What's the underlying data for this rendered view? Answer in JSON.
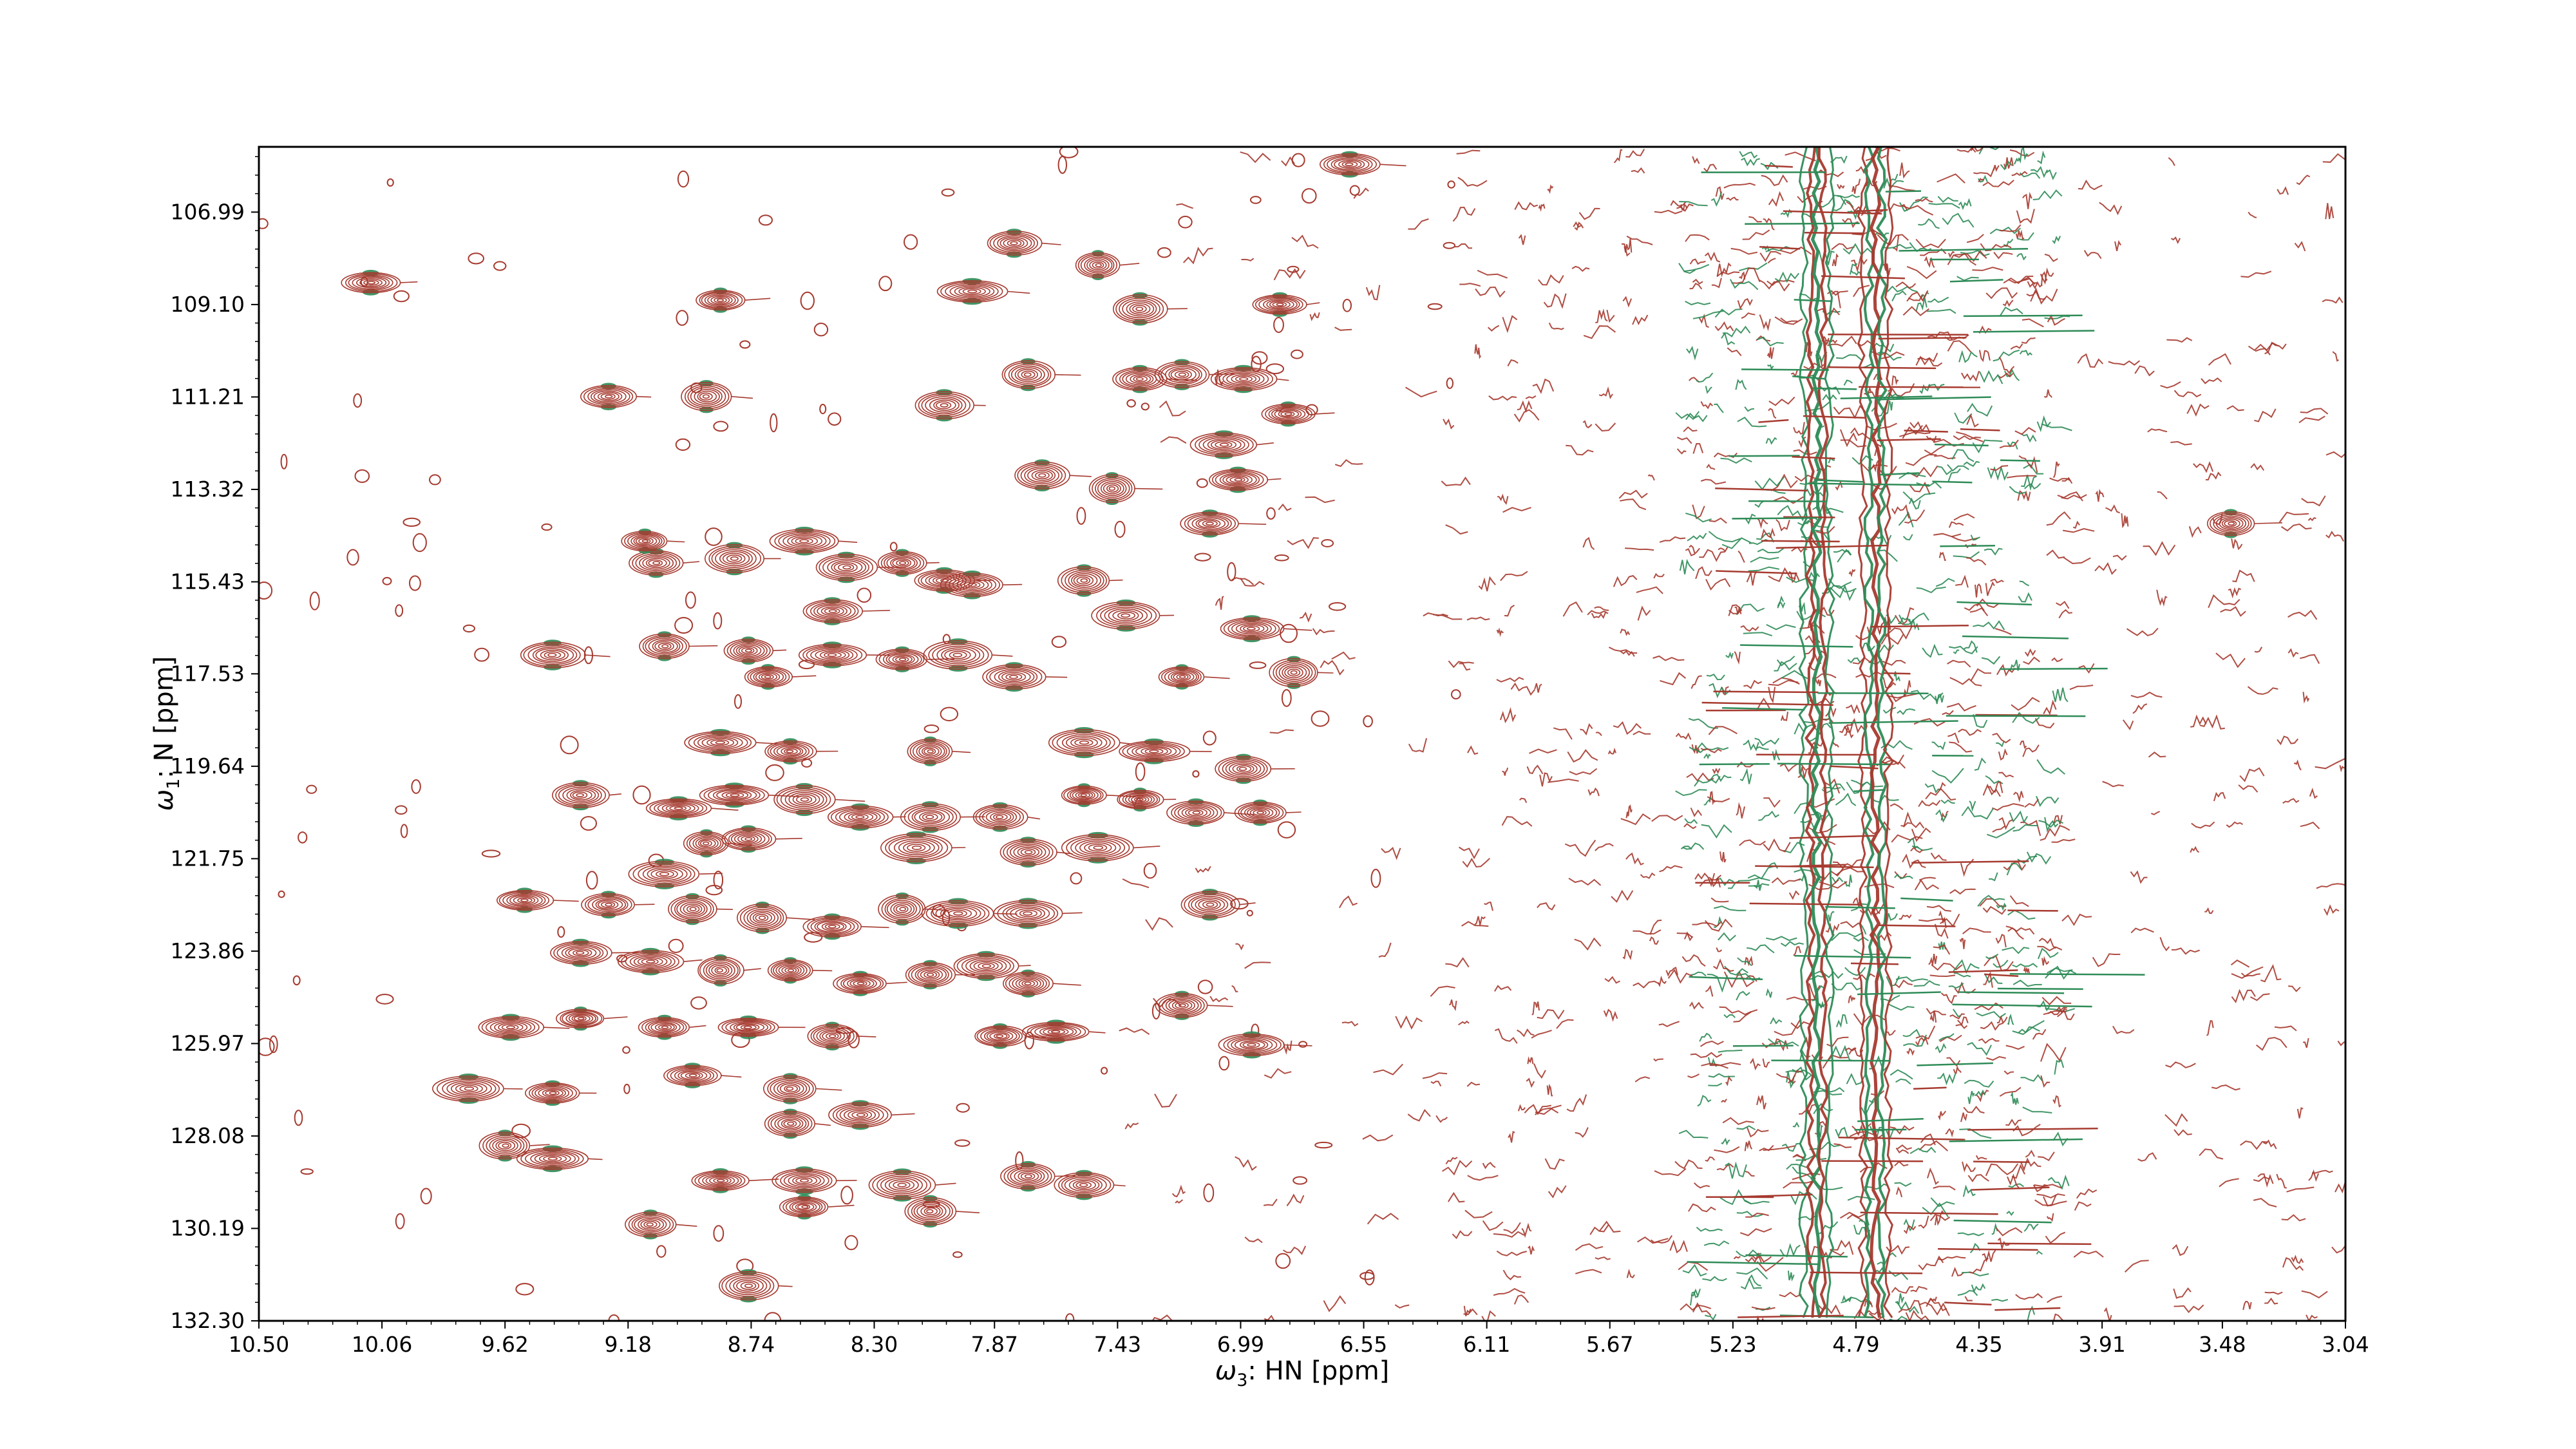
{
  "chart_data": {
    "type": "contour",
    "xlabel": {
      "prefix": "ω",
      "sub": "3",
      "suffix": ": HN [ppm]"
    },
    "ylabel": {
      "prefix": "ω",
      "sub": "1",
      "suffix": ": N [ppm]"
    },
    "xlim": [
      10.5,
      3.04
    ],
    "ylim": [
      105.5,
      132.3
    ],
    "x_ticks": [
      "10.50",
      "10.06",
      "9.62",
      "9.18",
      "8.74",
      "8.30",
      "7.87",
      "7.43",
      "6.99",
      "6.55",
      "6.11",
      "5.67",
      "5.23",
      "4.79",
      "4.35",
      "3.91",
      "3.48",
      "3.04"
    ],
    "y_ticks": [
      "106.99",
      "109.10",
      "111.21",
      "113.32",
      "115.43",
      "117.53",
      "119.64",
      "121.75",
      "123.86",
      "125.97",
      "128.08",
      "130.19",
      "132.30"
    ],
    "colors": {
      "positive": "#a63a2f",
      "negative": "#2e8b57"
    },
    "series": [
      {
        "kind": "peaks",
        "points": [
          [
            10.1,
            108.6
          ],
          [
            8.85,
            109.0
          ],
          [
            7.95,
            108.8
          ],
          [
            7.8,
            107.7
          ],
          [
            7.5,
            108.2
          ],
          [
            7.35,
            109.2
          ],
          [
            6.85,
            109.1
          ],
          [
            6.6,
            105.9
          ],
          [
            9.25,
            111.2
          ],
          [
            8.9,
            111.2
          ],
          [
            8.05,
            111.4
          ],
          [
            7.7,
            113.0
          ],
          [
            7.35,
            110.8
          ],
          [
            7.2,
            110.7
          ],
          [
            6.98,
            110.8
          ],
          [
            6.82,
            111.6
          ],
          [
            7.05,
            112.3
          ],
          [
            7.75,
            110.7
          ],
          [
            7.45,
            113.3
          ],
          [
            7.0,
            113.1
          ],
          [
            7.1,
            114.1
          ],
          [
            8.55,
            114.5
          ],
          [
            9.08,
            115.0
          ],
          [
            9.12,
            114.5
          ],
          [
            8.8,
            114.9
          ],
          [
            8.4,
            115.1
          ],
          [
            8.2,
            115.0
          ],
          [
            8.05,
            115.4
          ],
          [
            7.95,
            115.5
          ],
          [
            7.55,
            115.4
          ],
          [
            7.4,
            116.2
          ],
          [
            8.45,
            116.1
          ],
          [
            9.45,
            117.1
          ],
          [
            9.05,
            116.9
          ],
          [
            8.75,
            117.0
          ],
          [
            8.45,
            117.1
          ],
          [
            8.2,
            117.2
          ],
          [
            8.0,
            117.1
          ],
          [
            7.8,
            117.6
          ],
          [
            7.2,
            117.6
          ],
          [
            6.95,
            116.5
          ],
          [
            6.8,
            117.5
          ],
          [
            8.68,
            117.6
          ],
          [
            8.1,
            119.3
          ],
          [
            7.55,
            119.1
          ],
          [
            7.3,
            119.3
          ],
          [
            8.85,
            119.1
          ],
          [
            8.6,
            119.3
          ],
          [
            8.8,
            120.3
          ],
          [
            9.35,
            120.3
          ],
          [
            9.0,
            120.6
          ],
          [
            8.75,
            121.3
          ],
          [
            8.55,
            120.4
          ],
          [
            8.35,
            120.8
          ],
          [
            8.1,
            120.8
          ],
          [
            7.85,
            120.8
          ],
          [
            7.55,
            120.3
          ],
          [
            7.35,
            120.4
          ],
          [
            7.15,
            120.7
          ],
          [
            6.98,
            119.7
          ],
          [
            6.92,
            120.7
          ],
          [
            7.75,
            121.6
          ],
          [
            7.5,
            121.5
          ],
          [
            8.15,
            121.5
          ],
          [
            8.9,
            121.4
          ],
          [
            9.05,
            122.1
          ],
          [
            9.55,
            122.7
          ],
          [
            9.25,
            122.8
          ],
          [
            8.95,
            122.9
          ],
          [
            8.7,
            123.1
          ],
          [
            8.45,
            123.3
          ],
          [
            8.2,
            122.9
          ],
          [
            8.0,
            123.0
          ],
          [
            7.75,
            123.0
          ],
          [
            7.1,
            122.8
          ],
          [
            9.35,
            123.9
          ],
          [
            9.1,
            124.1
          ],
          [
            8.85,
            124.3
          ],
          [
            8.6,
            124.3
          ],
          [
            8.35,
            124.6
          ],
          [
            8.1,
            124.4
          ],
          [
            7.9,
            124.2
          ],
          [
            7.75,
            124.6
          ],
          [
            7.2,
            125.1
          ],
          [
            9.6,
            125.6
          ],
          [
            9.35,
            125.4
          ],
          [
            9.05,
            125.6
          ],
          [
            8.75,
            125.6
          ],
          [
            8.45,
            125.8
          ],
          [
            7.85,
            125.8
          ],
          [
            7.65,
            125.7
          ],
          [
            6.95,
            126.0
          ],
          [
            9.75,
            127.0
          ],
          [
            9.45,
            127.1
          ],
          [
            8.95,
            126.7
          ],
          [
            8.6,
            127.0
          ],
          [
            8.35,
            127.6
          ],
          [
            8.6,
            127.8
          ],
          [
            9.62,
            128.3
          ],
          [
            9.45,
            128.6
          ],
          [
            8.85,
            129.1
          ],
          [
            8.55,
            129.1
          ],
          [
            8.2,
            129.2
          ],
          [
            7.75,
            129.0
          ],
          [
            7.55,
            129.2
          ],
          [
            9.1,
            130.1
          ],
          [
            8.55,
            129.7
          ],
          [
            8.1,
            129.8
          ],
          [
            8.75,
            131.5
          ],
          [
            3.45,
            114.1
          ]
        ]
      },
      {
        "kind": "solvent",
        "x": [
          4.93,
          4.72
        ]
      }
    ]
  }
}
